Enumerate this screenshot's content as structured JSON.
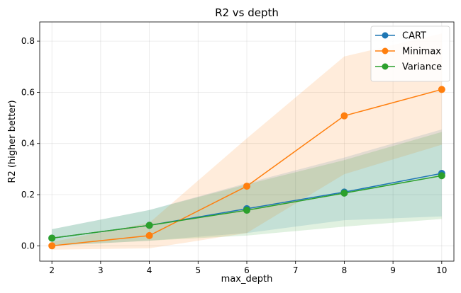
{
  "chart_data": {
    "type": "line",
    "title": "R2 vs depth",
    "xlabel": "max_depth",
    "ylabel": "R2 (higher better)",
    "xlim": [
      1.75,
      10.25
    ],
    "ylim": [
      -0.06,
      0.875
    ],
    "xticks": [
      2,
      3,
      4,
      5,
      6,
      7,
      8,
      9,
      10
    ],
    "yticks": [
      0.0,
      0.2,
      0.4,
      0.6,
      0.8
    ],
    "grid": true,
    "legend_position": "top-right",
    "x": [
      2,
      4,
      6,
      8,
      10
    ],
    "series": [
      {
        "name": "CART",
        "color": "#1f77b4",
        "values": [
          0.03,
          0.08,
          0.145,
          0.21,
          0.283
        ],
        "band_lower": [
          0.0,
          0.02,
          0.05,
          0.1,
          0.115
        ],
        "band_upper": [
          0.065,
          0.14,
          0.245,
          0.345,
          0.455
        ]
      },
      {
        "name": "Minimax",
        "color": "#ff7f0e",
        "values": [
          0.0,
          0.04,
          0.233,
          0.508,
          0.611
        ],
        "band_lower": [
          -0.015,
          -0.01,
          0.05,
          0.28,
          0.395
        ],
        "band_upper": [
          0.015,
          0.09,
          0.42,
          0.74,
          0.83
        ]
      },
      {
        "name": "Variance",
        "color": "#2ca02c",
        "values": [
          0.03,
          0.08,
          0.139,
          0.206,
          0.274
        ],
        "band_lower": [
          0.0,
          0.02,
          0.04,
          0.075,
          0.105
        ],
        "band_upper": [
          0.065,
          0.14,
          0.24,
          0.335,
          0.445
        ]
      }
    ]
  }
}
